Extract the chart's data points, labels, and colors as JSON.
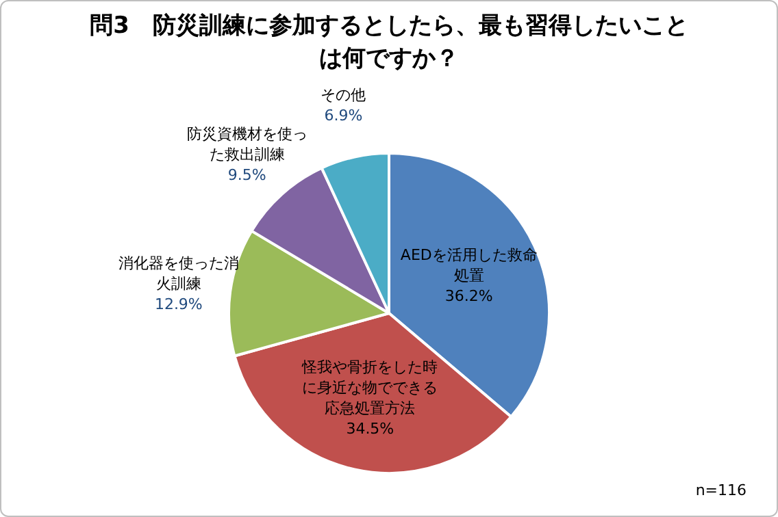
{
  "chart_data": {
    "type": "pie",
    "title": "問3　防災訓練に参加するとしたら、最も習得したいことは何ですか？",
    "categories": [
      "AEDを活用した救命処置",
      "怪我や骨折をした時に身近な物でできる応急処置方法",
      "消化器を使った消火訓練",
      "防災資機材を使った救出訓練",
      "その他"
    ],
    "values": [
      36.2,
      34.5,
      12.9,
      9.5,
      6.9
    ],
    "colors": [
      "#4f81bd",
      "#c0504d",
      "#9bbb59",
      "#8064a2",
      "#4bacc6"
    ],
    "value_labels": [
      "36.2%",
      "34.5%",
      "12.9%",
      "9.5%",
      "6.9%"
    ],
    "annotations": [
      "n=116"
    ],
    "legend": false
  }
}
